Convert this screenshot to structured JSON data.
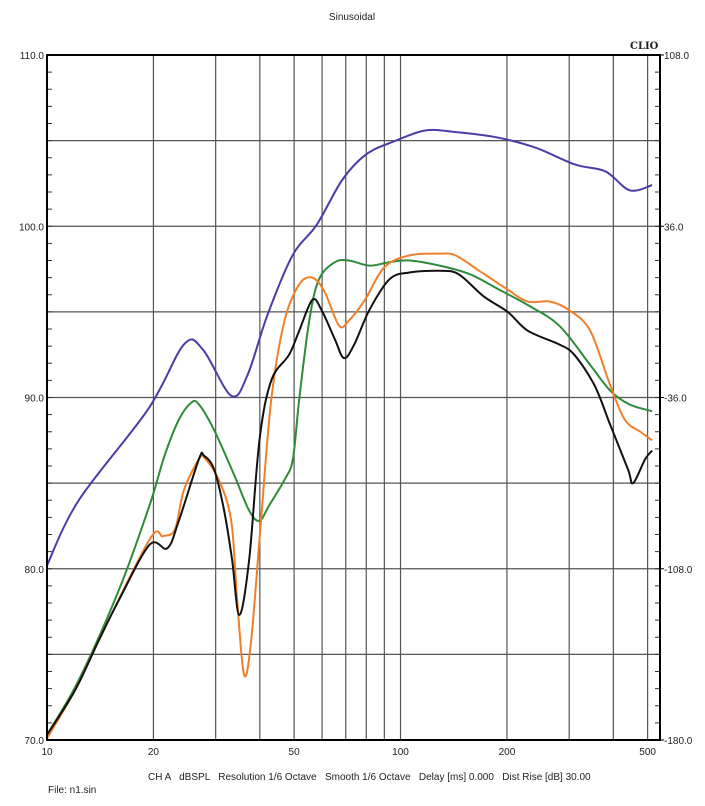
{
  "chart_data": {
    "type": "line",
    "title": "Sinusoidal",
    "logo": "CLIO",
    "x_scale": "log",
    "xlim": [
      10,
      542
    ],
    "ylim": [
      70,
      110
    ],
    "y2lim": [
      -180,
      108
    ],
    "grid": true,
    "x_ticks": [
      10,
      20,
      50,
      100,
      200,
      500
    ],
    "x_tick_labels": [
      "10",
      "20",
      "50",
      "100",
      "200",
      "500"
    ],
    "y_tick_labels": [
      "110.0",
      "100.0",
      "90.0",
      "80.0",
      "70.0"
    ],
    "y_ticks": [
      110,
      100,
      90,
      80,
      70
    ],
    "y2_tick_labels": [
      "108.0",
      "36.0",
      "-36.0",
      "-108.0",
      "-180.0"
    ],
    "footer": "CH A   dBSPL   Resolution 1/6 Octave   Smooth 1/6 Octave   Delay [ms] 0.000   Dist Rise [dB] 30.00",
    "file": "File: n1.sin",
    "series": [
      {
        "color": "#4b3ca8",
        "points": [
          [
            10,
            80.2
          ],
          [
            12.3,
            84
          ],
          [
            19.3,
            89.3
          ],
          [
            24.4,
            93.1
          ],
          [
            27.6,
            92.8
          ],
          [
            33.2,
            90.1
          ],
          [
            36.9,
            91.3
          ],
          [
            42,
            94.8
          ],
          [
            49.5,
            98.3
          ],
          [
            58,
            100.1
          ],
          [
            68.4,
            102.7
          ],
          [
            80,
            104.2
          ],
          [
            97,
            105.0
          ],
          [
            118,
            105.6
          ],
          [
            143,
            105.5
          ],
          [
            186,
            105.2
          ],
          [
            240,
            104.6
          ],
          [
            312,
            103.6
          ],
          [
            380,
            103.2
          ],
          [
            445,
            102.1
          ],
          [
            515,
            102.4
          ]
        ]
      },
      {
        "color": "#2e8b3a",
        "points": [
          [
            10,
            70.3
          ],
          [
            12.3,
            73.5
          ],
          [
            16,
            78.8
          ],
          [
            19.5,
            83.7
          ],
          [
            21.5,
            86.6
          ],
          [
            23.6,
            88.7
          ],
          [
            25.6,
            89.7
          ],
          [
            26.9,
            89.6
          ],
          [
            29.7,
            88.1
          ],
          [
            33.8,
            85.5
          ],
          [
            37.3,
            83.4
          ],
          [
            39.9,
            82.8
          ],
          [
            42.5,
            83.7
          ],
          [
            47,
            85.2
          ],
          [
            49.6,
            86.4
          ],
          [
            51.7,
            89.9
          ],
          [
            55.2,
            94.5
          ],
          [
            58.8,
            96.9
          ],
          [
            65.2,
            97.9
          ],
          [
            71.5,
            98.0
          ],
          [
            81.6,
            97.7
          ],
          [
            93,
            97.9
          ],
          [
            106,
            98.0
          ],
          [
            129,
            97.7
          ],
          [
            157,
            97.2
          ],
          [
            190,
            96.3
          ],
          [
            229,
            95.4
          ],
          [
            281,
            94.2
          ],
          [
            344,
            91.9
          ],
          [
            392,
            90.4
          ],
          [
            444,
            89.6
          ],
          [
            515,
            89.2
          ]
        ]
      },
      {
        "color": "#f07f2a",
        "points": [
          [
            10,
            70.1
          ],
          [
            12,
            72.9
          ],
          [
            14,
            75.8
          ],
          [
            19.5,
            81.7
          ],
          [
            21.3,
            81.9
          ],
          [
            23,
            82.3
          ],
          [
            24.4,
            84.6
          ],
          [
            26.9,
            86.4
          ],
          [
            27.8,
            86.5
          ],
          [
            30.6,
            85.2
          ],
          [
            33.2,
            82.8
          ],
          [
            34.5,
            78.2
          ],
          [
            36.1,
            73.8
          ],
          [
            37.8,
            75.8
          ],
          [
            40.3,
            82.8
          ],
          [
            43.1,
            89.9
          ],
          [
            47,
            94.5
          ],
          [
            51.7,
            96.6
          ],
          [
            56.3,
            97.0
          ],
          [
            60.9,
            96.2
          ],
          [
            67,
            94.2
          ],
          [
            71.5,
            94.5
          ],
          [
            79.3,
            95.7
          ],
          [
            90,
            97.6
          ],
          [
            106,
            98.3
          ],
          [
            129,
            98.4
          ],
          [
            143,
            98.3
          ],
          [
            167,
            97.4
          ],
          [
            201,
            96.3
          ],
          [
            229,
            95.6
          ],
          [
            265,
            95.6
          ],
          [
            300,
            95.1
          ],
          [
            344,
            93.9
          ],
          [
            392,
            90.7
          ],
          [
            431,
            88.7
          ],
          [
            477,
            88.0
          ],
          [
            515,
            87.5
          ]
        ]
      },
      {
        "color": "#111111",
        "points": [
          [
            10,
            70.3
          ],
          [
            12,
            72.9
          ],
          [
            14,
            75.8
          ],
          [
            16,
            78.2
          ],
          [
            19.5,
            81.4
          ],
          [
            21.9,
            81.2
          ],
          [
            23.6,
            82.8
          ],
          [
            26.9,
            86.4
          ],
          [
            27.8,
            86.6
          ],
          [
            29.7,
            85.8
          ],
          [
            31.7,
            83.4
          ],
          [
            33.4,
            80.5
          ],
          [
            35,
            77.3
          ],
          [
            37.3,
            80.5
          ],
          [
            39.9,
            87.5
          ],
          [
            43.1,
            91.0
          ],
          [
            48.4,
            92.5
          ],
          [
            51.7,
            93.9
          ],
          [
            56.3,
            95.7
          ],
          [
            59.8,
            95.1
          ],
          [
            65.2,
            93.4
          ],
          [
            69.2,
            92.3
          ],
          [
            74,
            93.1
          ],
          [
            81.6,
            95.1
          ],
          [
            93,
            96.9
          ],
          [
            106,
            97.3
          ],
          [
            129,
            97.4
          ],
          [
            146,
            97.2
          ],
          [
            172,
            95.9
          ],
          [
            201,
            95.0
          ],
          [
            229,
            93.9
          ],
          [
            281,
            93.1
          ],
          [
            310,
            92.5
          ],
          [
            354,
            90.7
          ],
          [
            392,
            88.4
          ],
          [
            440,
            85.8
          ],
          [
            455,
            85.0
          ],
          [
            492,
            86.4
          ],
          [
            515,
            86.9
          ]
        ]
      }
    ]
  }
}
